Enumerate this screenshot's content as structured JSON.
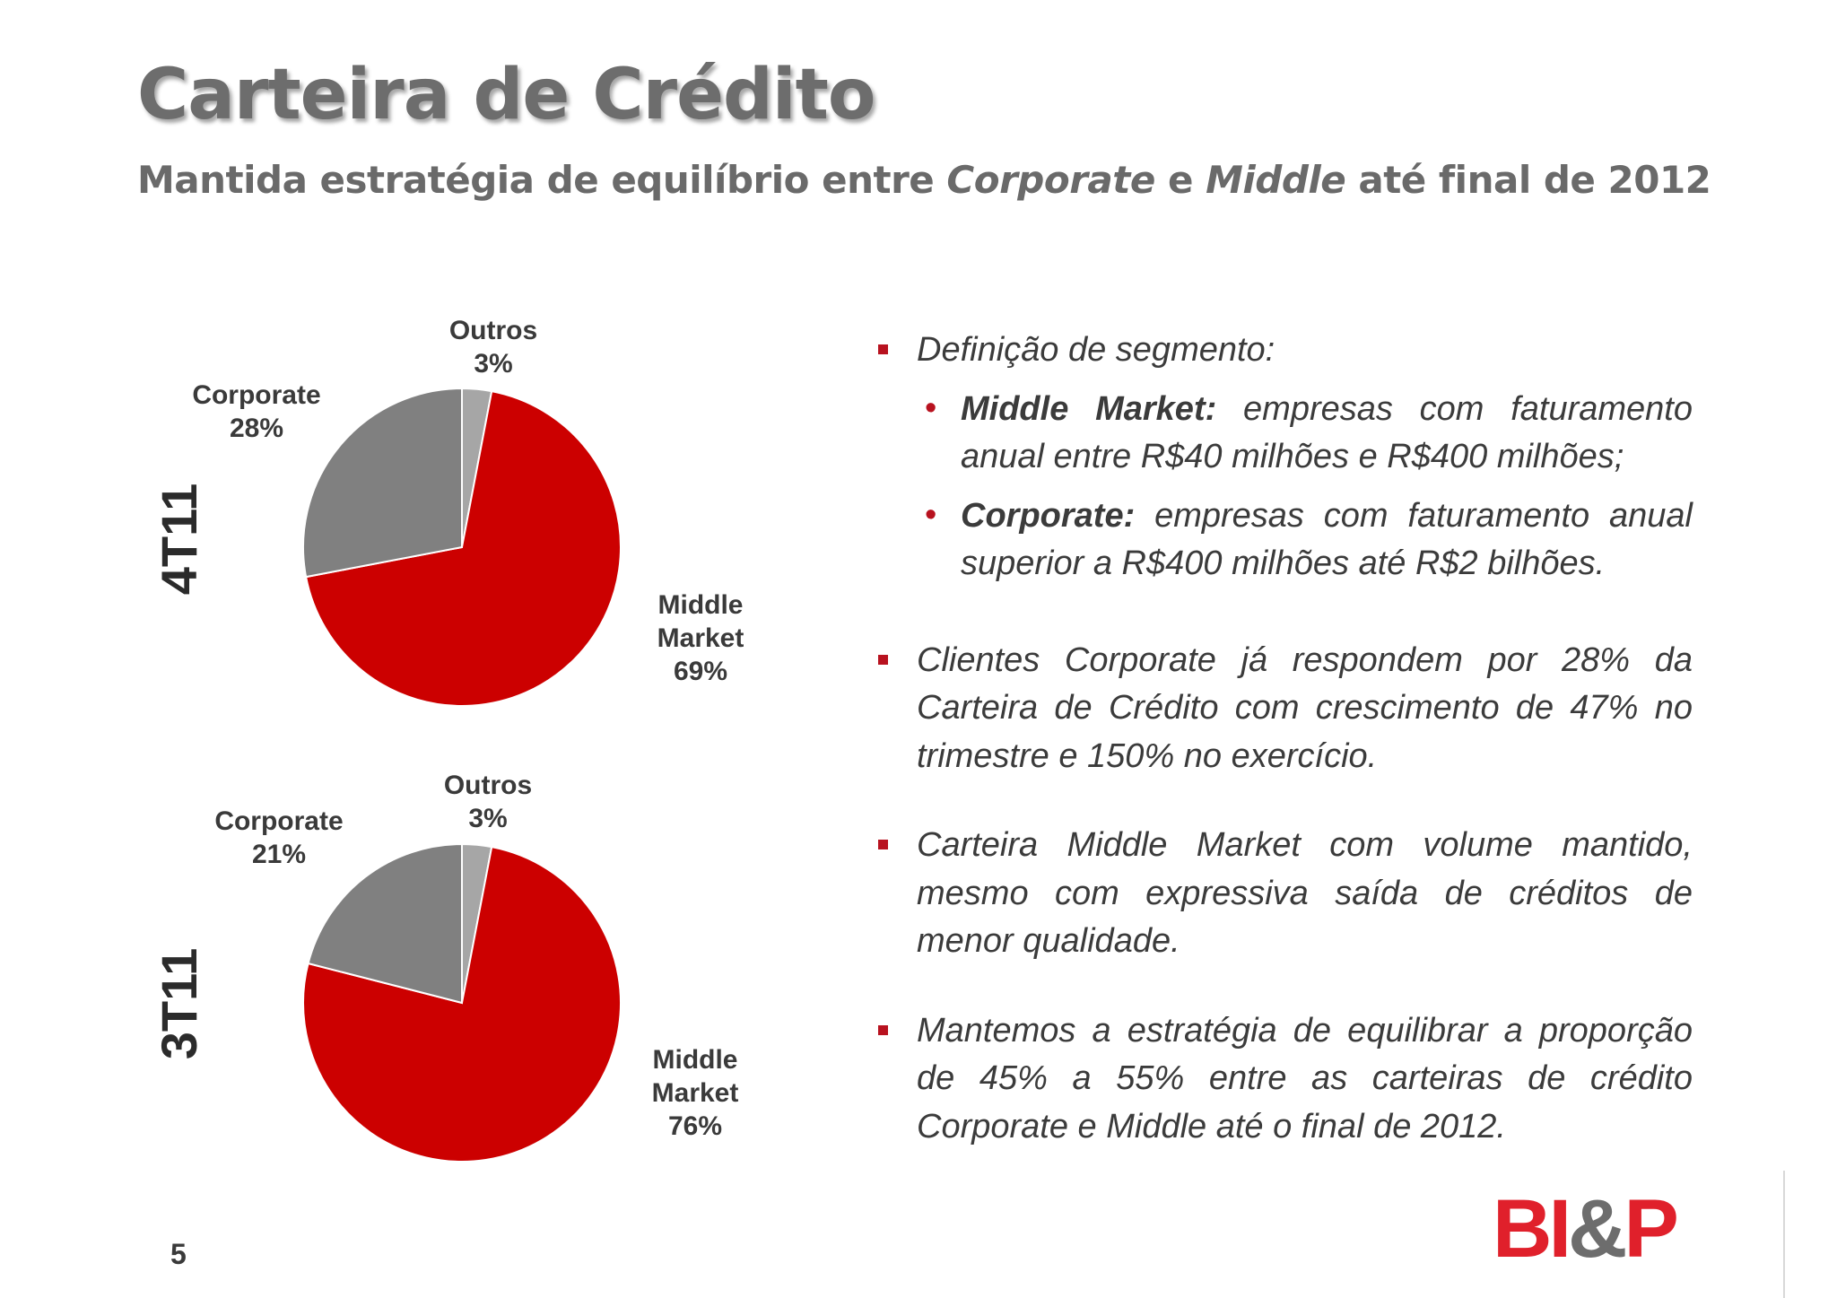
{
  "title": "Carteira de Crédito",
  "subtitle": {
    "part1": "Mantida estratégia de equilíbrio entre ",
    "corporate": "Corporate",
    "and": " e ",
    "middle": "Middle",
    "part2": " até final de 2012"
  },
  "chart_data": [
    {
      "type": "pie",
      "period": "4T11",
      "slices": [
        {
          "name": "Outros",
          "value": 3,
          "label": "3%",
          "color": "#a6a6a6"
        },
        {
          "name": "Middle Market",
          "value": 69,
          "label": "69%",
          "color": "#cc0000"
        },
        {
          "name": "Corporate",
          "value": 28,
          "label": "28%",
          "color": "#808080"
        }
      ]
    },
    {
      "type": "pie",
      "period": "3T11",
      "slices": [
        {
          "name": "Outros",
          "value": 3,
          "label": "3%",
          "color": "#a6a6a6"
        },
        {
          "name": "Middle Market",
          "value": 76,
          "label": "76%",
          "color": "#cc0000"
        },
        {
          "name": "Corporate",
          "value": 21,
          "label": "21%",
          "color": "#808080"
        }
      ]
    }
  ],
  "pie_labels": {
    "outros": "Outros",
    "corporate": "Corporate",
    "middle_line1": "Middle",
    "middle_line2": "Market"
  },
  "bullets": {
    "b1": "Definição de segmento:",
    "sub1_label": "Middle Market:",
    "sub1_text": " empresas com faturamento anual entre R$40 milhões e R$400 milhões;",
    "sub2_label": "Corporate:",
    "sub2_text": " empresas com faturamento anual superior a R$400 milhões até R$2 bilhões.",
    "b2": "Clientes Corporate já respondem por 28% da Carteira de Crédito com crescimento de 47% no trimestre e 150% no exercício.",
    "b3": "Carteira Middle Market com volume mantido, mesmo com expressiva saída de créditos de menor qualidade.",
    "b4": "Mantemos a estratégia de equilibrar a proporção de 45% a 55% entre as carteiras de crédito Corporate e Middle até o final de 2012."
  },
  "page_number": "5",
  "logo": {
    "text": "BI&P",
    "color_bi": "#e0202b",
    "color_amp": "#6d6d6d",
    "color_p": "#e0202b"
  }
}
